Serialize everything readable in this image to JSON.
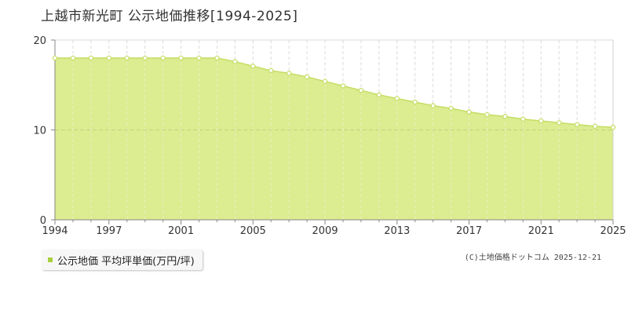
{
  "title": "上越市新光町 公示地価推移[1994-2025]",
  "legend": {
    "label": "公示地価 平均坪単価(万円/坪)"
  },
  "credit": "(C)土地価格ドットコム 2025-12-21",
  "colors": {
    "fill": "#dbec91",
    "line": "#c5dd62",
    "marker_fill": "#ffffff",
    "legend_swatch": "#a9d03e",
    "grid": "#bbbbbb",
    "axis": "#888888"
  },
  "chart_data": {
    "type": "area",
    "title": "",
    "xlabel": "",
    "ylabel": "",
    "ylim": [
      0,
      20
    ],
    "yticks": [
      0,
      10,
      20
    ],
    "xlim": [
      1994,
      2025
    ],
    "xtick_labels": [
      1994,
      1997,
      2001,
      2005,
      2009,
      2013,
      2017,
      2021,
      2025
    ],
    "grid": true,
    "series": [
      {
        "name": "公示地価 平均坪単価(万円/坪)",
        "x": [
          1994,
          1995,
          1996,
          1997,
          1998,
          1999,
          2000,
          2001,
          2002,
          2003,
          2004,
          2005,
          2006,
          2007,
          2008,
          2009,
          2010,
          2011,
          2012,
          2013,
          2014,
          2015,
          2016,
          2017,
          2018,
          2019,
          2020,
          2021,
          2022,
          2023,
          2024,
          2025
        ],
        "y": [
          18.0,
          18.0,
          18.0,
          18.0,
          18.0,
          18.0,
          18.0,
          18.0,
          18.0,
          18.0,
          17.6,
          17.1,
          16.6,
          16.3,
          15.9,
          15.4,
          14.9,
          14.4,
          13.9,
          13.5,
          13.1,
          12.7,
          12.4,
          12.0,
          11.7,
          11.5,
          11.2,
          11.0,
          10.8,
          10.6,
          10.4,
          10.3
        ]
      }
    ]
  }
}
